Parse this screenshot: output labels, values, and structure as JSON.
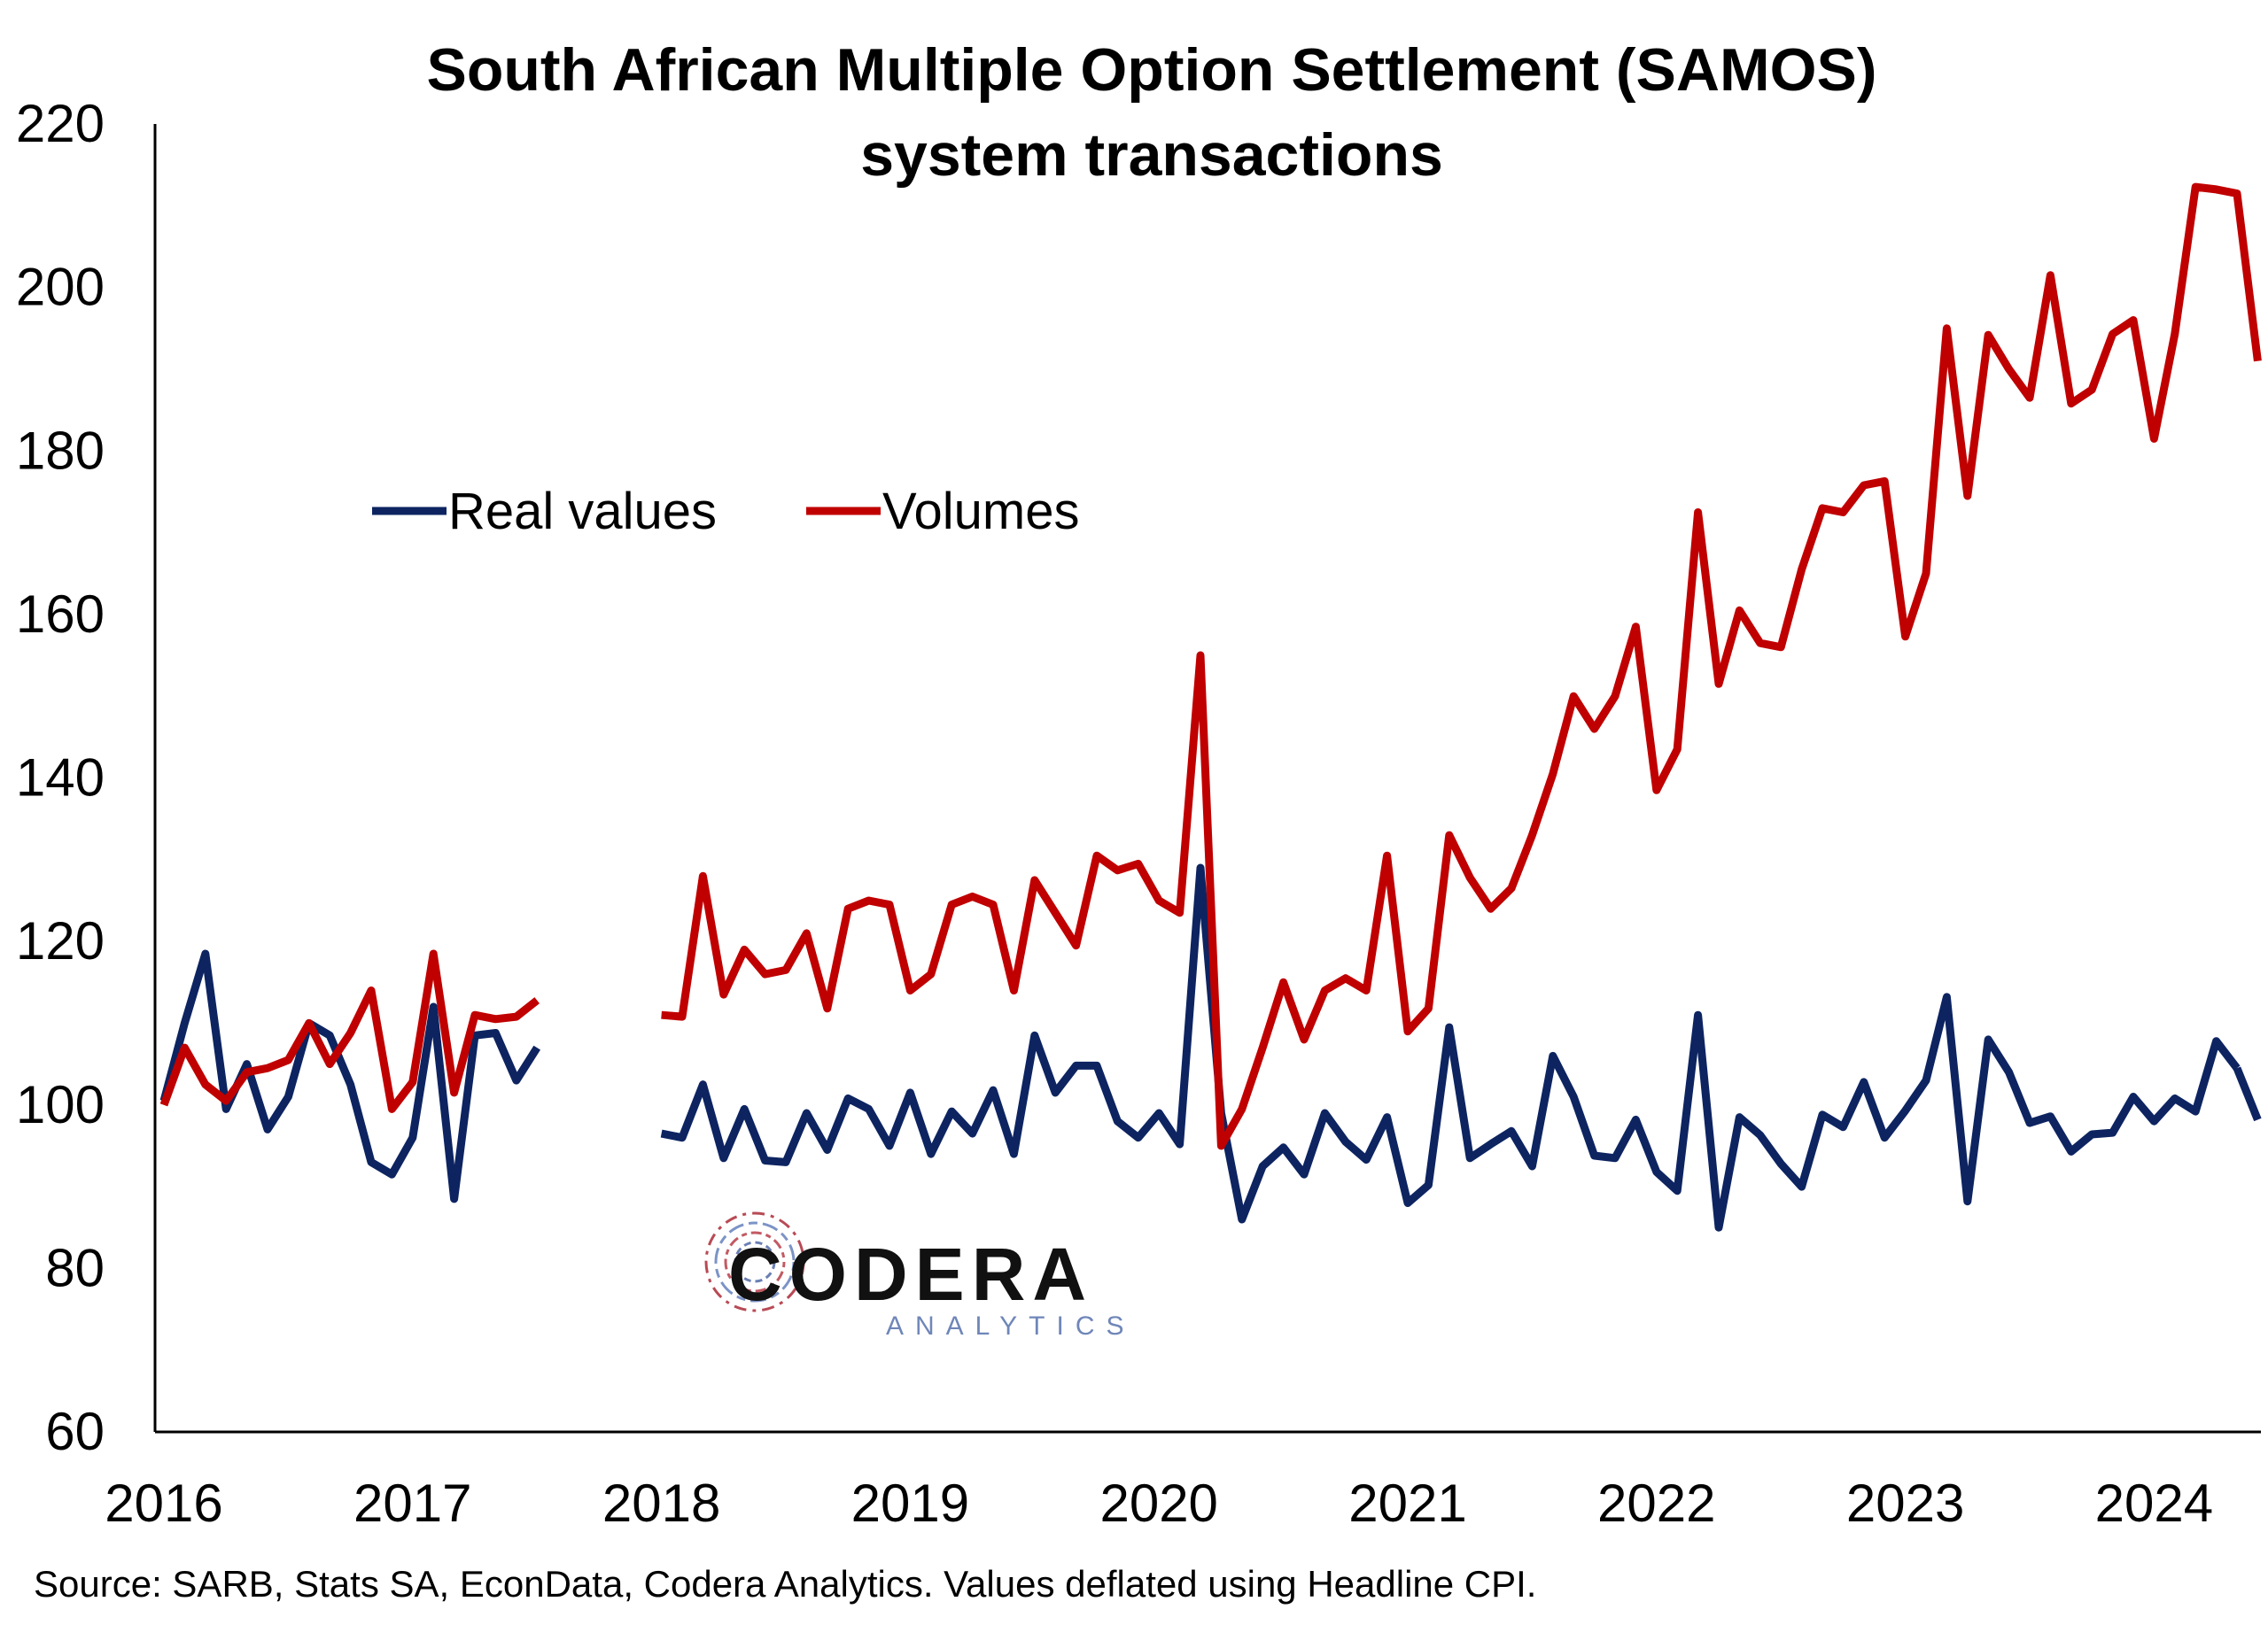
{
  "chart_data": {
    "type": "line",
    "title": "South African Multiple Option Settlement (SAMOS)",
    "subtitle": "system transactions",
    "xlabel": "",
    "ylabel": "",
    "ylim": [
      60,
      220
    ],
    "yticks": [
      60,
      80,
      100,
      120,
      140,
      160,
      180,
      200,
      220
    ],
    "xticks": [
      "2016",
      "2017",
      "2018",
      "2019",
      "2020",
      "2021",
      "2022",
      "2023",
      "2024"
    ],
    "x_unit": "months since Jan 2016 (month index; 12 per year)",
    "grid": false,
    "legend_position": "upper-left",
    "gap": "no data from mid-2017 to end-2017",
    "series": [
      {
        "name": "Real values",
        "color": "#0d2461",
        "segments": [
          {
            "x": [
              0,
              1,
              2,
              3,
              4,
              5,
              6,
              7,
              8,
              9,
              10,
              11,
              12,
              13,
              14,
              15,
              16,
              17,
              18
            ],
            "values": [
              100.5,
              110.0,
              118.5,
              99.5,
              105.0,
              97.0,
              101.0,
              110.0,
              108.5,
              102.5,
              93.0,
              91.5,
              96.0,
              112.0,
              88.5,
              108.5,
              108.8,
              103.0,
              107.0
            ]
          },
          {
            "x": [
              24,
              25,
              26,
              27,
              28,
              29,
              30,
              31,
              32,
              33,
              34,
              35,
              36,
              37,
              38,
              39,
              40,
              41,
              42,
              43,
              44,
              45,
              46,
              47,
              48,
              49,
              50,
              51,
              52,
              53,
              54,
              55,
              56,
              57,
              58,
              59,
              60,
              61,
              62,
              63,
              64,
              65,
              66,
              67,
              68,
              69,
              70,
              71,
              72,
              73,
              74,
              75,
              76,
              77,
              78,
              79,
              80,
              81,
              82,
              83,
              84,
              85,
              86,
              87,
              88,
              89,
              90,
              91,
              92,
              93,
              94,
              95,
              96,
              97,
              98,
              99,
              100
            ],
            "values": [
              96.5,
              96.0,
              102.5,
              93.5,
              99.5,
              93.2,
              93.0,
              99.0,
              94.5,
              100.8,
              99.5,
              95.0,
              101.5,
              94.0,
              99.2,
              96.5,
              101.8,
              94.0,
              108.5,
              101.5,
              104.8,
              104.8,
              98.0,
              96.0,
              99.0,
              95.2,
              129.0,
              99.0,
              86.0,
              92.5,
              94.8,
              91.5,
              99.0,
              95.5,
              93.3,
              98.5,
              88.0,
              90.2,
              109.5,
              93.5,
              95.2,
              96.8,
              92.5,
              106.0,
              101.0,
              93.8,
              93.5,
              98.2,
              91.8,
              89.5,
              111.0,
              85.0,
              98.5,
              96.3,
              92.8,
              90.0,
              98.8,
              97.3,
              102.8,
              96.0,
              99.3,
              103.0,
              113.2,
              88.2,
              108.0,
              104.0,
              97.8,
              98.6,
              94.3,
              96.4,
              96.6,
              101.0,
              98.0,
              100.8,
              99.2,
              107.8,
              104.5
            ]
          },
          {
            "x": [
              100,
              101
            ],
            "values": [
              104.5,
              98.2
            ]
          }
        ]
      },
      {
        "name": "Volumes",
        "color": "#c00000",
        "segments": [
          {
            "x": [
              0,
              1,
              2,
              3,
              4,
              5,
              6,
              7,
              8,
              9,
              10,
              11,
              12,
              13,
              14,
              15,
              16,
              17,
              18
            ],
            "values": [
              100.0,
              107.0,
              102.5,
              100.5,
              104.0,
              104.5,
              105.5,
              110.0,
              105.0,
              108.8,
              114.0,
              99.5,
              102.8,
              118.5,
              101.5,
              111.0,
              110.5,
              110.8,
              112.8
            ]
          },
          {
            "x": [
              24,
              25,
              26,
              27,
              28,
              29,
              30,
              31,
              32,
              33,
              34,
              35,
              36,
              37,
              38,
              39,
              40,
              41,
              42,
              43,
              44,
              45,
              46,
              47,
              48,
              49,
              50,
              51,
              52,
              53,
              54,
              55,
              56,
              57,
              58,
              59,
              60,
              61,
              62,
              63,
              64,
              65,
              66,
              67,
              68,
              69,
              70,
              71,
              72,
              73,
              74,
              75,
              76,
              77,
              78,
              79,
              80,
              81,
              82,
              83,
              84,
              85,
              86,
              87,
              88,
              89,
              90,
              91,
              92,
              93,
              94,
              95,
              96,
              97,
              98,
              99,
              100,
              101
            ],
            "values": [
              111.0,
              110.8,
              128.0,
              113.5,
              119.0,
              116.0,
              116.5,
              121.0,
              111.8,
              124.0,
              125.0,
              124.5,
              114.0,
              116.0,
              124.5,
              125.5,
              124.5,
              114.0,
              127.5,
              123.5,
              119.5,
              130.5,
              128.7,
              129.5,
              125.0,
              123.5,
              155.0,
              95.0,
              99.5,
              107.0,
              115.0,
              108.0,
              114.0,
              115.5,
              114.0,
              130.5,
              109.0,
              111.8,
              133.0,
              127.8,
              124.0,
              126.5,
              133.0,
              140.5,
              150.0,
              146.0,
              150.0,
              158.5,
              138.5,
              143.5,
              172.5,
              151.5,
              160.5,
              156.5,
              156.0,
              165.5,
              173.0,
              172.5,
              175.8,
              176.3,
              157.3,
              165.0,
              195.0,
              174.5,
              194.2,
              190.0,
              186.5,
              201.5,
              185.8,
              187.5,
              194.3,
              196.0,
              181.5,
              194.3,
              212.3,
              212.0,
              211.5,
              191.0
            ]
          }
        ]
      }
    ]
  },
  "source_note": "Source: SARB, Stats SA, EconData, Codera Analytics. Values deflated using Headline CPI.",
  "logo": {
    "name": "CODERA",
    "tagline": "ANALYTICS"
  }
}
